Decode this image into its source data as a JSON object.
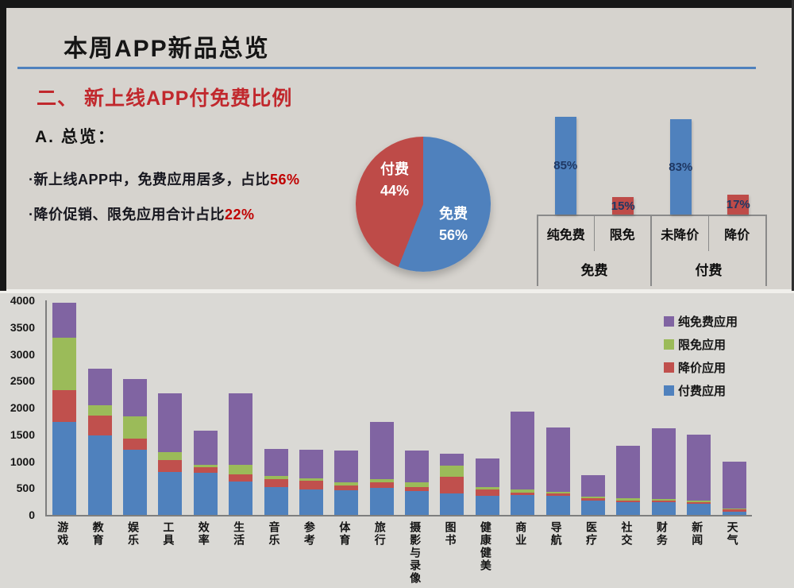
{
  "header": {
    "title": "本周APP新品总览",
    "section_heading": "二、 新上线APP付免费比例"
  },
  "overview": {
    "label": "A. 总览：",
    "bullets": [
      {
        "text": "·新上线APP中，免费应用居多，占比",
        "highlight": "56%"
      },
      {
        "text": "·降价促销、限免应用合计占比",
        "highlight": "22%"
      }
    ]
  },
  "colors": {
    "paid_blue": "#4f81bd",
    "discount_red": "#c0504d",
    "limited_free_green": "#9bbb59",
    "pure_free_purple": "#8064a2",
    "heading_red": "#c1282d",
    "title_rule_blue": "#4f81bd"
  },
  "chart_data": [
    {
      "type": "pie",
      "slices": [
        {
          "label": "免费",
          "value": 56,
          "pct_label": "56%",
          "color": "#4f81bd"
        },
        {
          "label": "付费",
          "value": 44,
          "pct_label": "44%",
          "color": "#be4b48"
        }
      ],
      "start_angle": "12 o'clock, clockwise",
      "legend_position": "labels inside slices"
    },
    {
      "type": "bar",
      "subtype": "grouped-percent",
      "unit": "%",
      "ylim": [
        0,
        100
      ],
      "groups": [
        {
          "label": "免费",
          "bars": [
            {
              "label": "纯免费",
              "value": 85,
              "color": "#4f81bd"
            },
            {
              "label": "限免",
              "value": 15,
              "color": "#be4b48"
            }
          ]
        },
        {
          "label": "付费",
          "bars": [
            {
              "label": "未降价",
              "value": 83,
              "color": "#4f81bd"
            },
            {
              "label": "降价",
              "value": 17,
              "color": "#be4b48"
            }
          ]
        }
      ],
      "grid": false
    },
    {
      "type": "bar",
      "subtype": "stacked",
      "ylim": [
        0,
        4000
      ],
      "ytick_step": 500,
      "grid": false,
      "legend_position": "upper right",
      "categories": [
        "游戏",
        "教育",
        "娱乐",
        "工具",
        "效率",
        "生活",
        "音乐",
        "参考",
        "体育",
        "旅行",
        "摄影与录像",
        "图书",
        "健康健美",
        "商业",
        "导航",
        "医疗",
        "社交",
        "财务",
        "新闻",
        "天气"
      ],
      "series": [
        {
          "name": "付费应用",
          "color": "#4f81bd",
          "values": [
            1730,
            1480,
            1220,
            800,
            790,
            620,
            520,
            470,
            455,
            500,
            440,
            395,
            350,
            370,
            350,
            260,
            245,
            240,
            215,
            60
          ]
        },
        {
          "name": "降价应用",
          "color": "#c0504d",
          "values": [
            590,
            370,
            200,
            220,
            105,
            140,
            150,
            165,
            90,
            110,
            75,
            320,
            120,
            50,
            45,
            50,
            25,
            30,
            25,
            45
          ]
        },
        {
          "name": "限免应用",
          "color": "#9bbb59",
          "values": [
            980,
            200,
            410,
            150,
            40,
            170,
            60,
            45,
            60,
            55,
            90,
            200,
            45,
            55,
            30,
            25,
            45,
            30,
            25,
            15
          ]
        },
        {
          "name": "纯免费应用",
          "color": "#8064a2",
          "values": [
            650,
            670,
            710,
            1100,
            640,
            1335,
            500,
            535,
            595,
            1065,
            595,
            230,
            535,
            1455,
            1200,
            410,
            980,
            1310,
            1225,
            880
          ]
        }
      ],
      "legend": [
        {
          "label": "纯免费应用",
          "color": "#8064a2"
        },
        {
          "label": "限免应用",
          "color": "#9bbb59"
        },
        {
          "label": "降价应用",
          "color": "#c0504d"
        },
        {
          "label": "付费应用",
          "color": "#4f81bd"
        }
      ]
    }
  ]
}
